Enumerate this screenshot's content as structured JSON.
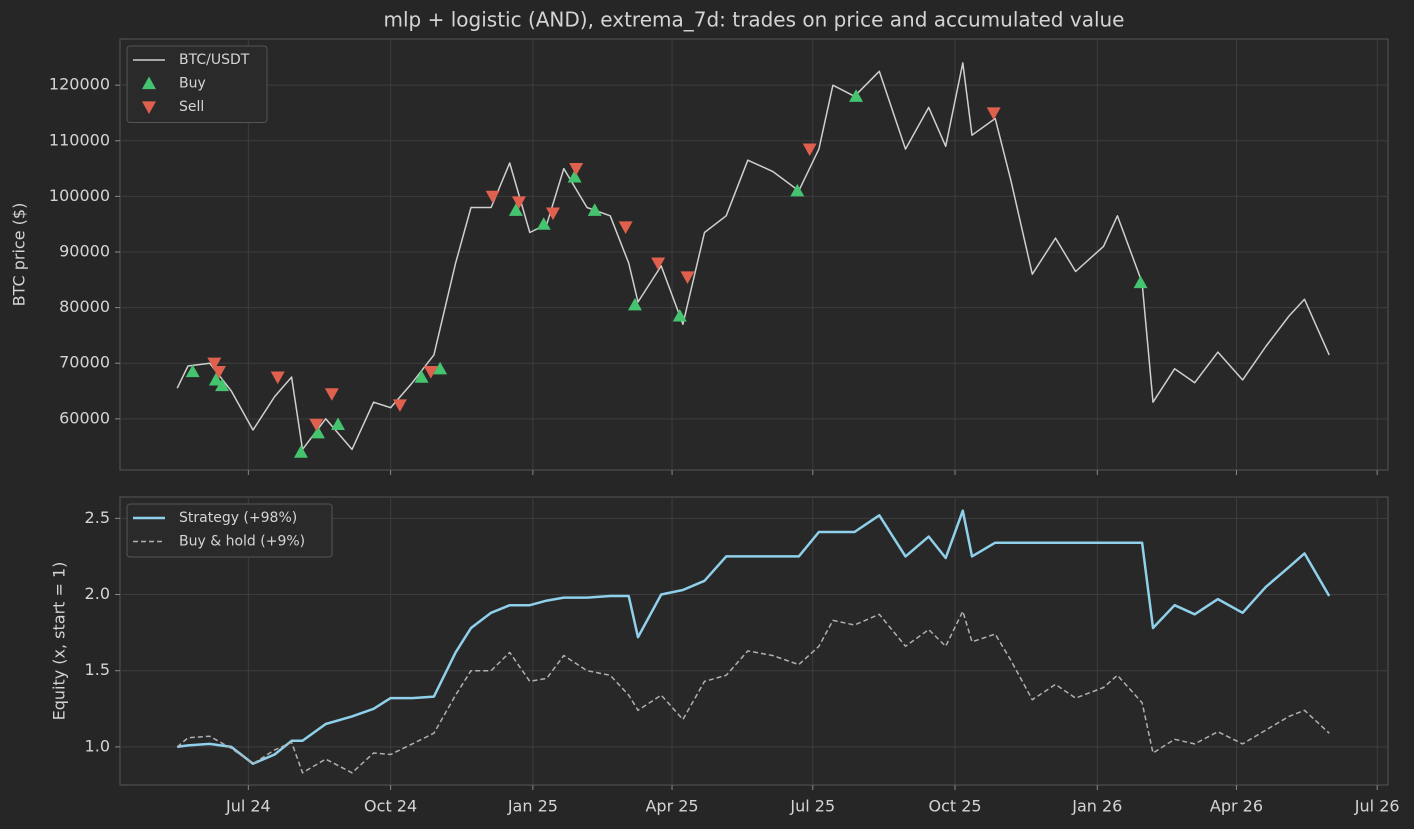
{
  "chart_data": [
    {
      "type": "line",
      "title": "mlp + logistic (AND), extrema_7d: trades on price and accumulated value",
      "ylabel": "BTC price ($)",
      "ylim": [
        50800,
        128300
      ],
      "yticks": [
        60000,
        70000,
        80000,
        90000,
        100000,
        110000,
        120000
      ],
      "grid": true,
      "legend": "upper left",
      "x": [
        "2024-05-16",
        "2024-05-23",
        "2024-06-06",
        "2024-06-20",
        "2024-07-04",
        "2024-07-18",
        "2024-07-29",
        "2024-08-05",
        "2024-08-20",
        "2024-09-06",
        "2024-09-20",
        "2024-10-01",
        "2024-10-15",
        "2024-10-29",
        "2024-11-12",
        "2024-11-22",
        "2024-12-05",
        "2024-12-17",
        "2024-12-30",
        "2025-01-10",
        "2025-01-21",
        "2025-02-05",
        "2025-02-20",
        "2025-03-04",
        "2025-03-10",
        "2025-03-25",
        "2025-04-08",
        "2025-04-22",
        "2025-05-06",
        "2025-05-20",
        "2025-06-05",
        "2025-06-22",
        "2025-07-05",
        "2025-07-14",
        "2025-07-28",
        "2025-08-13",
        "2025-08-30",
        "2025-09-14",
        "2025-09-25",
        "2025-10-06",
        "2025-10-12",
        "2025-10-27",
        "2025-11-06",
        "2025-11-20",
        "2025-12-05",
        "2025-12-18",
        "2026-01-05",
        "2026-01-14",
        "2026-01-30",
        "2026-02-06",
        "2026-02-20",
        "2026-03-05",
        "2026-03-20",
        "2026-04-05",
        "2026-04-20",
        "2026-05-05",
        "2026-05-15",
        "2026-05-31"
      ],
      "series": [
        {
          "name": "BTC/USDT",
          "color": "#cfcfcf",
          "values": [
            65500,
            69500,
            70000,
            65000,
            58000,
            64000,
            67500,
            54500,
            60000,
            54500,
            63000,
            62000,
            66500,
            71500,
            88000,
            98000,
            98000,
            106000,
            93500,
            95000,
            105000,
            98000,
            96500,
            88000,
            81000,
            87500,
            77000,
            93500,
            96500,
            106500,
            104500,
            101000,
            108500,
            120000,
            118000,
            122500,
            108500,
            116000,
            109000,
            124000,
            111000,
            114000,
            103000,
            86000,
            92500,
            86500,
            91000,
            96500,
            84500,
            63000,
            69000,
            66500,
            72000,
            67000,
            73000,
            78500,
            81500,
            71500
          ]
        },
        {
          "name": "Buy",
          "color": "#45c46f",
          "marker": "triangle-up",
          "x": [
            "2024-05-26",
            "2024-06-10",
            "2024-06-14",
            "2024-08-04",
            "2024-08-15",
            "2024-08-28",
            "2024-10-21",
            "2024-11-02",
            "2024-12-21",
            "2025-01-08",
            "2025-01-28",
            "2025-02-10",
            "2025-03-08",
            "2025-04-06",
            "2025-06-21",
            "2025-07-29",
            "2026-01-29"
          ],
          "values": [
            68500,
            67000,
            66000,
            54000,
            57500,
            59000,
            67500,
            69000,
            97500,
            95000,
            103500,
            97500,
            80500,
            78500,
            101000,
            118000,
            84500
          ]
        },
        {
          "name": "Sell",
          "color": "#e0604e",
          "marker": "triangle-down",
          "x": [
            "2024-06-09",
            "2024-06-12",
            "2024-07-20",
            "2024-08-14",
            "2024-08-24",
            "2024-10-07",
            "2024-10-27",
            "2024-12-06",
            "2024-12-23",
            "2025-01-14",
            "2025-01-29",
            "2025-03-02",
            "2025-03-23",
            "2025-04-11",
            "2025-06-29",
            "2025-10-26"
          ],
          "values": [
            70000,
            68500,
            67500,
            59000,
            64500,
            62500,
            68500,
            100000,
            99000,
            97000,
            105000,
            94500,
            88000,
            85500,
            108500,
            115000
          ]
        }
      ]
    },
    {
      "type": "line",
      "ylabel": "Equity (x, start = 1)",
      "ylim": [
        0.75,
        2.64
      ],
      "yticks": [
        {
          "value": 1,
          "label": "1.0"
        },
        1.5,
        {
          "value": 2,
          "label": "2.0"
        },
        2.5
      ],
      "xlim": [
        "2024-04-09",
        "2026-07-08"
      ],
      "xticks": [
        {
          "value": "2024-07",
          "label": "Jul 24"
        },
        {
          "value": "2024-10",
          "label": "Oct 24"
        },
        {
          "value": "2025-01",
          "label": "Jan 25"
        },
        {
          "value": "2025-04",
          "label": "Apr 25"
        },
        {
          "value": "2025-07",
          "label": "Jul 25"
        },
        {
          "value": "2025-10",
          "label": "Oct 25"
        },
        {
          "value": "2026-01",
          "label": "Jan 26"
        },
        {
          "value": "2026-04",
          "label": "Apr 26"
        },
        {
          "value": "2026-07",
          "label": "Jul 26"
        }
      ],
      "grid": true,
      "legend": "upper left",
      "x": [
        "2024-05-16",
        "2024-05-23",
        "2024-06-06",
        "2024-06-20",
        "2024-07-04",
        "2024-07-18",
        "2024-07-29",
        "2024-08-05",
        "2024-08-20",
        "2024-09-06",
        "2024-09-20",
        "2024-10-01",
        "2024-10-15",
        "2024-10-29",
        "2024-11-12",
        "2024-11-22",
        "2024-12-05",
        "2024-12-17",
        "2024-12-30",
        "2025-01-10",
        "2025-01-21",
        "2025-02-05",
        "2025-02-20",
        "2025-03-04",
        "2025-03-10",
        "2025-03-25",
        "2025-04-08",
        "2025-04-22",
        "2025-05-06",
        "2025-05-20",
        "2025-06-05",
        "2025-06-22",
        "2025-07-05",
        "2025-07-14",
        "2025-07-28",
        "2025-08-13",
        "2025-08-30",
        "2025-09-14",
        "2025-09-25",
        "2025-10-06",
        "2025-10-12",
        "2025-10-27",
        "2025-11-06",
        "2025-11-20",
        "2025-12-05",
        "2025-12-18",
        "2026-01-05",
        "2026-01-14",
        "2026-01-30",
        "2026-02-06",
        "2026-02-20",
        "2026-03-05",
        "2026-03-20",
        "2026-04-05",
        "2026-04-20",
        "2026-05-05",
        "2026-05-15",
        "2026-05-31"
      ],
      "series": [
        {
          "name": "Strategy (+98%)",
          "color": "#8fd0ea",
          "linestyle": "solid",
          "values": [
            1.0,
            1.01,
            1.02,
            1.0,
            0.89,
            0.95,
            1.04,
            1.04,
            1.15,
            1.2,
            1.25,
            1.32,
            1.32,
            1.33,
            1.62,
            1.78,
            1.88,
            1.93,
            1.93,
            1.96,
            1.98,
            1.98,
            1.99,
            1.99,
            1.72,
            2.0,
            2.03,
            2.09,
            2.25,
            2.25,
            2.25,
            2.25,
            2.41,
            2.41,
            2.41,
            2.52,
            2.25,
            2.38,
            2.24,
            2.55,
            2.25,
            2.34,
            2.34,
            2.34,
            2.34,
            2.34,
            2.34,
            2.34,
            2.34,
            1.78,
            1.93,
            1.87,
            1.97,
            1.88,
            2.05,
            2.18,
            2.27,
            1.99
          ]
        },
        {
          "name": "Buy & hold (+9%)",
          "color": "#b0b0b0",
          "linestyle": "dashed",
          "values": [
            1.0,
            1.06,
            1.07,
            0.99,
            0.89,
            0.98,
            1.03,
            0.83,
            0.92,
            0.83,
            0.96,
            0.95,
            1.02,
            1.09,
            1.34,
            1.5,
            1.5,
            1.62,
            1.43,
            1.45,
            1.6,
            1.5,
            1.47,
            1.34,
            1.24,
            1.34,
            1.18,
            1.43,
            1.47,
            1.63,
            1.6,
            1.54,
            1.66,
            1.83,
            1.8,
            1.87,
            1.66,
            1.77,
            1.66,
            1.89,
            1.69,
            1.74,
            1.57,
            1.31,
            1.41,
            1.32,
            1.39,
            1.47,
            1.29,
            0.96,
            1.05,
            1.02,
            1.1,
            1.02,
            1.11,
            1.2,
            1.24,
            1.09
          ]
        }
      ]
    }
  ]
}
